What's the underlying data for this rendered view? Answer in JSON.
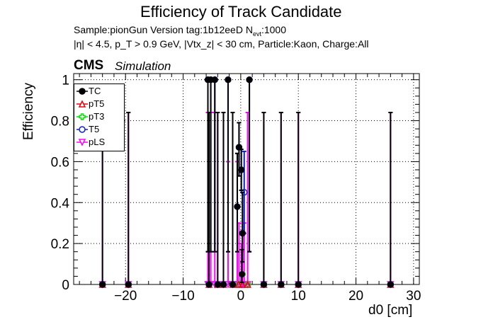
{
  "title": "Efficiency of Track Candidate",
  "info_line1": "Sample:pionGun   Version tag:1b12eeD  N",
  "info_line1_sub": "evt",
  "info_line1_tail": ":1000",
  "info_line2": "|η| < 4.5, p_T > 0.9 GeV, |Vtx_z| < 30 cm, Particle:Kaon, Charge:All",
  "cms_label": "CMS",
  "sim_label": "Simulation",
  "chart_data": {
    "type": "scatter",
    "title": "Efficiency of Track Candidate",
    "xlabel": "d0 [cm]",
    "ylabel": "Efficiency",
    "xlim": [
      -29,
      31
    ],
    "ylim": [
      0,
      1.03
    ],
    "x_ticks": [
      -20,
      -10,
      0,
      10,
      20,
      30
    ],
    "y_ticks": [
      0,
      0.2,
      0.4,
      0.6,
      0.8,
      1
    ],
    "grid": true,
    "legend_position": "top-left",
    "series": [
      {
        "name": "TC",
        "color": "#000000",
        "marker": "circle-filled",
        "points": [
          {
            "x": -24,
            "y": 0,
            "eh": 0.84
          },
          {
            "x": -19.5,
            "y": 0,
            "eh": 0.84
          },
          {
            "x": -5.7,
            "y": 1.0,
            "el": 0.84
          },
          {
            "x": -5.2,
            "y": 1.0,
            "el": 0.84
          },
          {
            "x": -4.5,
            "y": 1.0,
            "el": 0.84
          },
          {
            "x": -2.2,
            "y": 1.0,
            "el": 0.84
          },
          {
            "x": -0.6,
            "y": 0.38,
            "el": 0.22,
            "eh": 0.26
          },
          {
            "x": -0.3,
            "y": 0.67,
            "el": 0.14,
            "eh": 0.12
          },
          {
            "x": 0.1,
            "y": 0.56,
            "el": 0.1,
            "eh": 0.1
          },
          {
            "x": 0.3,
            "y": 0.25,
            "el": 0.14,
            "eh": 0.2
          },
          {
            "x": 0.2,
            "y": 0.05,
            "el": 0.04,
            "eh": 0.12
          },
          {
            "x": 1.5,
            "y": 1.0,
            "el": 0.84
          },
          {
            "x": -5.5,
            "y": 0,
            "eh": 0.84
          },
          {
            "x": -4.0,
            "y": 0,
            "eh": 0.84
          },
          {
            "x": -3.0,
            "y": 0,
            "eh": 0.84
          },
          {
            "x": -1.4,
            "y": 0,
            "eh": 0.84
          },
          {
            "x": 4.0,
            "y": 0,
            "eh": 0.84
          },
          {
            "x": 7.0,
            "y": 0,
            "eh": 0.84
          },
          {
            "x": 10.0,
            "y": 0,
            "eh": 0.84
          },
          {
            "x": 26.0,
            "y": 0,
            "eh": 0.84
          }
        ]
      },
      {
        "name": "pT5",
        "color": "#e8000b",
        "marker": "triangle-open",
        "points": [
          {
            "x": -24,
            "y": 0
          },
          {
            "x": -19.5,
            "y": 0
          },
          {
            "x": -5.5,
            "y": 0
          },
          {
            "x": -4.0,
            "y": 0
          },
          {
            "x": -3.0,
            "y": 0
          },
          {
            "x": -1.4,
            "y": 0
          },
          {
            "x": -0.4,
            "y": 0
          },
          {
            "x": 0.3,
            "y": 0
          },
          {
            "x": 1.2,
            "y": 0
          },
          {
            "x": 4.0,
            "y": 0
          },
          {
            "x": 7.0,
            "y": 0
          },
          {
            "x": 10.0,
            "y": 0
          },
          {
            "x": 26.0,
            "y": 0
          }
        ]
      },
      {
        "name": "pT3",
        "color": "#00e000",
        "marker": "cross-open",
        "points": [
          {
            "x": -24,
            "y": 0
          },
          {
            "x": -19.5,
            "y": 0
          },
          {
            "x": -5.5,
            "y": 0
          },
          {
            "x": -4.0,
            "y": 0
          },
          {
            "x": -3.0,
            "y": 0
          },
          {
            "x": -1.4,
            "y": 0
          },
          {
            "x": -0.4,
            "y": 0
          },
          {
            "x": 0.3,
            "y": 0.05
          },
          {
            "x": 1.2,
            "y": 0
          },
          {
            "x": 4.0,
            "y": 0
          },
          {
            "x": 7.0,
            "y": 0
          },
          {
            "x": 10.0,
            "y": 0
          },
          {
            "x": 26.0,
            "y": 0
          }
        ]
      },
      {
        "name": "T5",
        "color": "#0b1fd6",
        "marker": "circle-open",
        "points": [
          {
            "x": -5.7,
            "y": 1.0,
            "el": 0.84
          },
          {
            "x": -5.2,
            "y": 1.0,
            "el": 0.84
          },
          {
            "x": -4.5,
            "y": 1.0,
            "el": 0.84
          },
          {
            "x": -2.2,
            "y": 1.0,
            "el": 0.84
          },
          {
            "x": -0.6,
            "y": 0.38,
            "el": 0.22,
            "eh": 0.26
          },
          {
            "x": -0.3,
            "y": 0.67,
            "el": 0.14,
            "eh": 0.12
          },
          {
            "x": 0.1,
            "y": 0.56,
            "el": 0.1,
            "eh": 0.1
          },
          {
            "x": 0.6,
            "y": 0.45,
            "el": 0.2,
            "eh": 0.2
          },
          {
            "x": 0.3,
            "y": 0.25,
            "el": 0.14,
            "eh": 0.2
          },
          {
            "x": 1.5,
            "y": 1.0,
            "el": 0.84
          },
          {
            "x": -24,
            "y": 0
          },
          {
            "x": -19.5,
            "y": 0
          },
          {
            "x": -5.5,
            "y": 0
          },
          {
            "x": -4.0,
            "y": 0
          },
          {
            "x": -3.0,
            "y": 0
          },
          {
            "x": -1.4,
            "y": 0
          },
          {
            "x": 4.0,
            "y": 0
          },
          {
            "x": 7.0,
            "y": 0
          },
          {
            "x": 10.0,
            "y": 0
          },
          {
            "x": 26.0,
            "y": 0
          }
        ]
      },
      {
        "name": "pLS",
        "color": "#ff00ff",
        "marker": "triangle-down-open",
        "points": [
          {
            "x": -24,
            "y": 0,
            "eh": 0.84
          },
          {
            "x": -19.5,
            "y": 0,
            "eh": 0.84
          },
          {
            "x": -5.7,
            "y": 0,
            "eh": 0.84
          },
          {
            "x": -5.2,
            "y": 0,
            "eh": 0.84
          },
          {
            "x": -4.5,
            "y": 0,
            "eh": 0.84
          },
          {
            "x": -4.0,
            "y": 0,
            "eh": 0.84
          },
          {
            "x": -3.0,
            "y": 0,
            "eh": 0.84
          },
          {
            "x": -2.2,
            "y": 0,
            "eh": 0.6
          },
          {
            "x": -1.4,
            "y": 0,
            "eh": 0.84
          },
          {
            "x": -0.6,
            "y": 0,
            "eh": 0.6
          },
          {
            "x": -0.3,
            "y": 0,
            "eh": 0.3
          },
          {
            "x": 0.1,
            "y": 0,
            "eh": 0.2
          },
          {
            "x": 0.3,
            "y": 0,
            "eh": 0.16
          },
          {
            "x": 0.6,
            "y": 0,
            "eh": 0.3
          },
          {
            "x": 1.2,
            "y": 0,
            "eh": 0.84
          },
          {
            "x": 4.0,
            "y": 0,
            "eh": 0.84
          },
          {
            "x": 7.0,
            "y": 0,
            "eh": 0.84
          },
          {
            "x": 10.0,
            "y": 0,
            "eh": 0.84
          },
          {
            "x": 26.0,
            "y": 0,
            "eh": 0.84
          }
        ]
      }
    ]
  }
}
